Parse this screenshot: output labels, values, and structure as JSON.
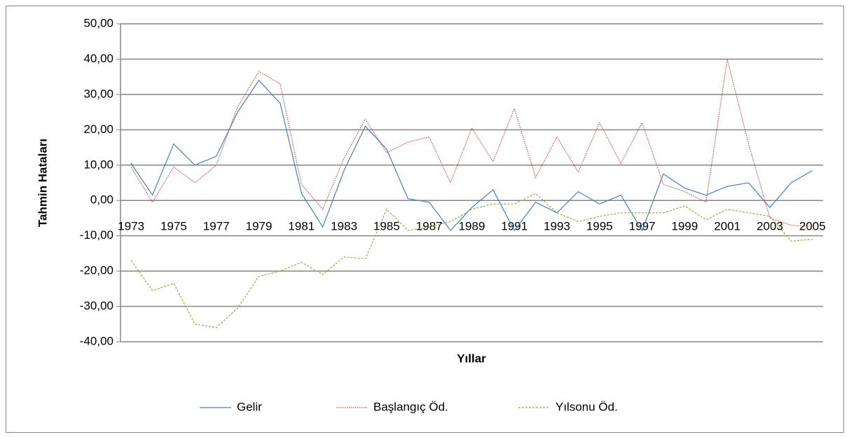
{
  "chart_data": {
    "type": "line",
    "ylabel": "Tahmin Hataları",
    "xlabel": "Yıllar",
    "x": [
      1973,
      1974,
      1975,
      1976,
      1977,
      1978,
      1979,
      1980,
      1981,
      1982,
      1983,
      1984,
      1985,
      1986,
      1987,
      1988,
      1989,
      1990,
      1991,
      1992,
      1993,
      1994,
      1995,
      1996,
      1997,
      1998,
      1999,
      2000,
      2001,
      2002,
      2003,
      2004,
      2005
    ],
    "xlim": [
      1972.5,
      2005.5
    ],
    "xticks": [
      1973,
      1975,
      1977,
      1979,
      1981,
      1983,
      1985,
      1987,
      1989,
      1991,
      1993,
      1995,
      1997,
      1999,
      2001,
      2003,
      2005
    ],
    "ylim": [
      -40,
      50
    ],
    "yticks": [
      {
        "value": -40,
        "label": "-40,00"
      },
      {
        "value": -30,
        "label": "-30,00"
      },
      {
        "value": -20,
        "label": "-20,00"
      },
      {
        "value": -10,
        "label": "-10,00"
      },
      {
        "value": 0,
        "label": "0,00"
      },
      {
        "value": 10,
        "label": "10,00"
      },
      {
        "value": 20,
        "label": "20,00"
      },
      {
        "value": 30,
        "label": "30,00"
      },
      {
        "value": 40,
        "label": "40,00"
      },
      {
        "value": 50,
        "label": "50,00"
      }
    ],
    "grid": true,
    "legend": "bottom",
    "series": [
      {
        "name": "Gelir",
        "color": "#4a7ebb",
        "dash": "none",
        "values": [
          10.5,
          1.5,
          16,
          10,
          12.5,
          25,
          34,
          27.5,
          2,
          -7.5,
          8.5,
          21,
          14.5,
          0.5,
          -0.5,
          -8.5,
          -2,
          3,
          -8.5,
          -0.5,
          -3.5,
          2.5,
          -1,
          1.5,
          -8.5,
          7.5,
          3.5,
          1.5,
          4,
          5,
          -2,
          5,
          8.5
        ]
      },
      {
        "name": "Başlangıç Öd.",
        "color": "#c0504d",
        "dash": "1.5 1.5",
        "values": [
          9.5,
          -0.5,
          9.5,
          5,
          10,
          26.5,
          36.5,
          33,
          4.5,
          -2.5,
          12,
          23,
          13.5,
          16.5,
          18,
          5,
          20.5,
          11,
          26,
          6.5,
          18,
          8,
          22,
          10.5,
          22,
          4.5,
          2.5,
          -0.5,
          40,
          16,
          -5,
          -7,
          -7.5
        ]
      },
      {
        "name": "Yılsonu Öd.",
        "color": "#98a849",
        "dash": "3 2",
        "values": [
          -17,
          -25.5,
          -23.5,
          -35,
          -36,
          -30.5,
          -21.5,
          -20,
          -17.5,
          -21,
          -16,
          -16.5,
          -2.5,
          -8.5,
          -7.5,
          -6,
          -2.5,
          -1,
          -1,
          2,
          -3.5,
          -6,
          -4.5,
          -3.5,
          -3.5,
          -3.5,
          -1.5,
          -5.5,
          -2.5,
          -3.5,
          -4.5,
          -11.5,
          -11
        ]
      }
    ]
  }
}
